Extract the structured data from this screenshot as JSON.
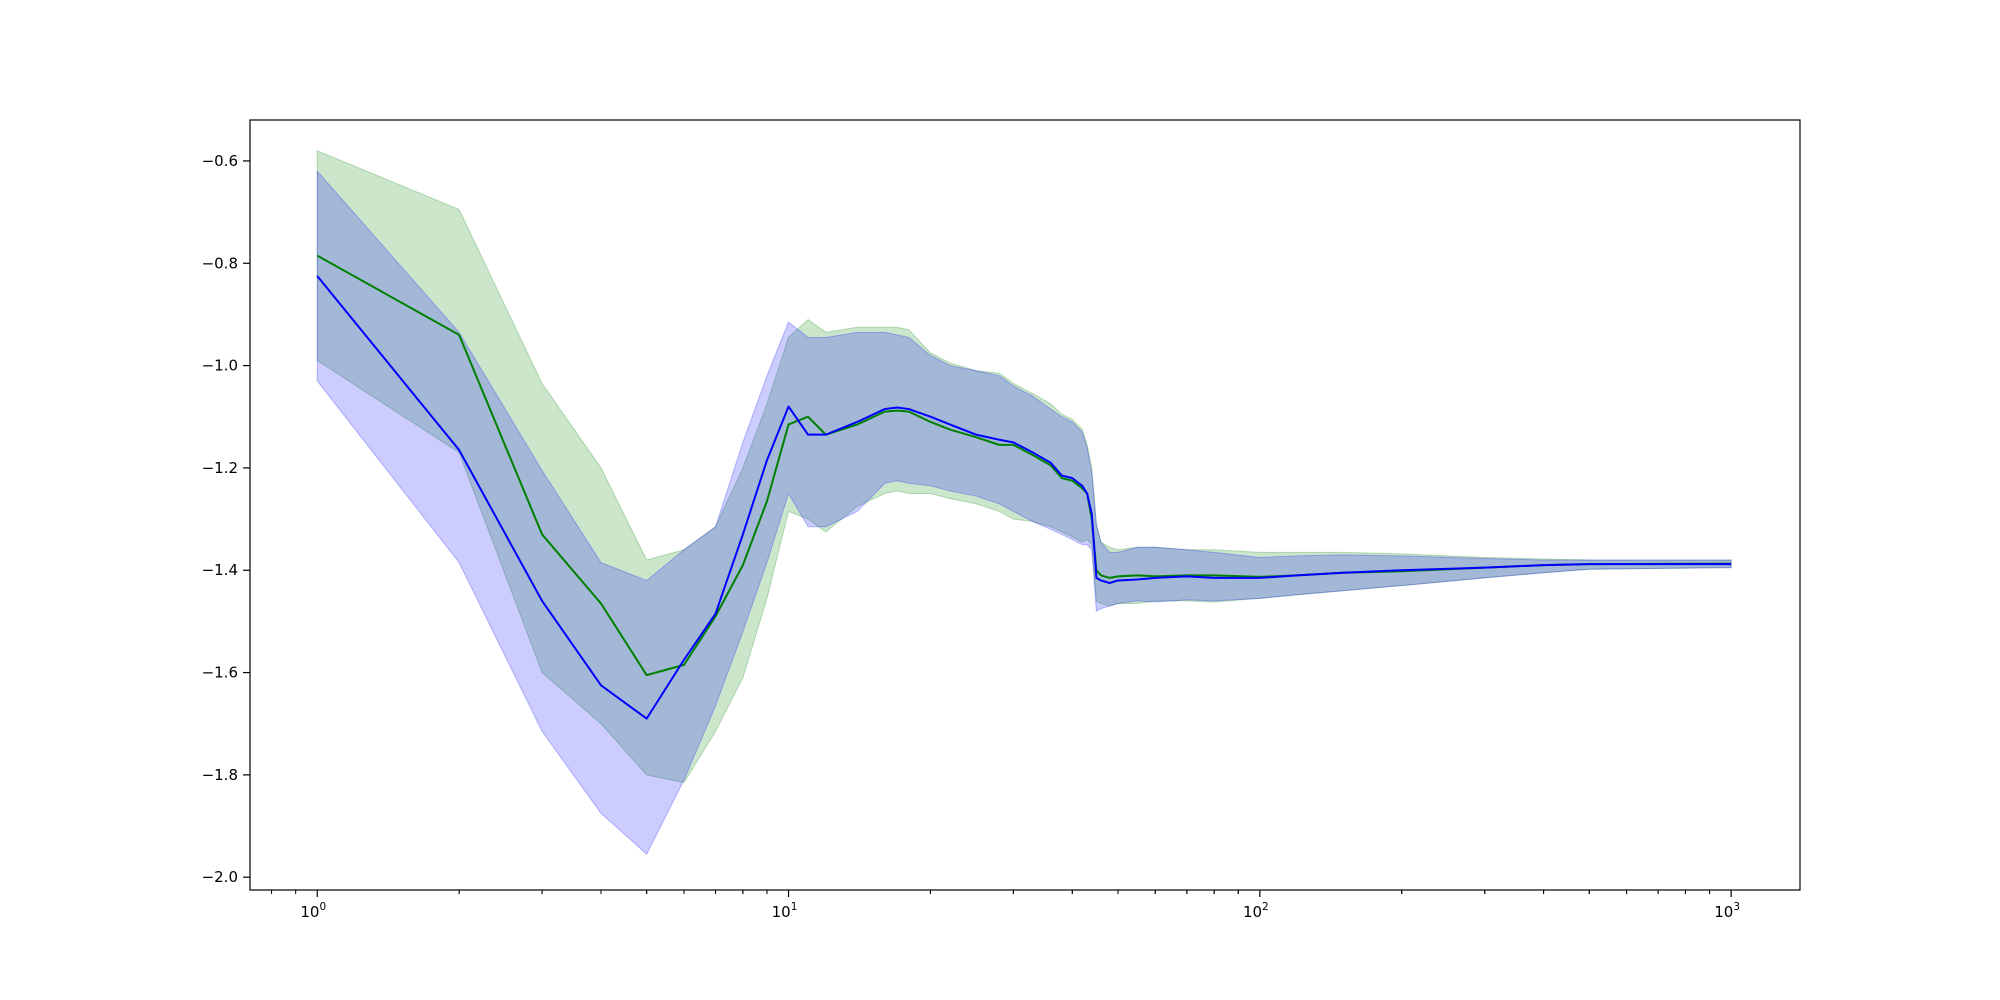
{
  "chart_data": {
    "type": "line",
    "title": "",
    "xlabel": "",
    "ylabel": "",
    "xscale": "log",
    "xlim": [
      0.72,
      1400
    ],
    "ylim": [
      -2.025,
      -0.52
    ],
    "grid": false,
    "legend": "none",
    "x_ticks": [
      {
        "value": 1,
        "base": "10",
        "exp": "0"
      },
      {
        "value": 10,
        "base": "10",
        "exp": "1"
      },
      {
        "value": 100,
        "base": "10",
        "exp": "2"
      },
      {
        "value": 1000,
        "base": "10",
        "exp": "3"
      }
    ],
    "y_ticks": [
      {
        "value": -0.6,
        "label": "−0.6"
      },
      {
        "value": -0.8,
        "label": "−0.8"
      },
      {
        "value": -1.0,
        "label": "−1.0"
      },
      {
        "value": -1.2,
        "label": "−1.2"
      },
      {
        "value": -1.4,
        "label": "−1.4"
      },
      {
        "value": -1.6,
        "label": "−1.6"
      },
      {
        "value": -1.8,
        "label": "−1.8"
      },
      {
        "value": -2.0,
        "label": "−2.0"
      }
    ],
    "series": [
      {
        "color": "#008000",
        "band_color": "#008000",
        "band_opacity": 0.2,
        "x": [
          1,
          2,
          3,
          4,
          5,
          6,
          7,
          8,
          9,
          10,
          11,
          12,
          14,
          16,
          17,
          18,
          20,
          22,
          25,
          28,
          30,
          33,
          36,
          38,
          40,
          42,
          43,
          44,
          45,
          46,
          48,
          50,
          55,
          60,
          70,
          80,
          100,
          120,
          150,
          200,
          300,
          400,
          500,
          1000
        ],
        "y": [
          -0.785,
          -0.94,
          -1.33,
          -1.465,
          -1.605,
          -1.585,
          -1.49,
          -1.39,
          -1.265,
          -1.115,
          -1.1,
          -1.135,
          -1.115,
          -1.09,
          -1.088,
          -1.09,
          -1.11,
          -1.125,
          -1.14,
          -1.155,
          -1.155,
          -1.175,
          -1.195,
          -1.22,
          -1.225,
          -1.24,
          -1.25,
          -1.3,
          -1.4,
          -1.41,
          -1.415,
          -1.412,
          -1.41,
          -1.412,
          -1.41,
          -1.41,
          -1.413,
          -1.41,
          -1.405,
          -1.402,
          -1.395,
          -1.39,
          -1.388,
          -1.387
        ],
        "upper": [
          -0.58,
          -0.695,
          -1.035,
          -1.2,
          -1.38,
          -1.36,
          -1.315,
          -1.2,
          -1.075,
          -0.945,
          -0.91,
          -0.935,
          -0.925,
          -0.925,
          -0.925,
          -0.93,
          -0.975,
          -0.995,
          -1.01,
          -1.015,
          -1.035,
          -1.055,
          -1.075,
          -1.095,
          -1.105,
          -1.125,
          -1.155,
          -1.2,
          -1.31,
          -1.345,
          -1.355,
          -1.36,
          -1.355,
          -1.355,
          -1.36,
          -1.36,
          -1.365,
          -1.365,
          -1.365,
          -1.368,
          -1.375,
          -1.378,
          -1.38,
          -1.38
        ],
        "lower": [
          -0.99,
          -1.17,
          -1.6,
          -1.7,
          -1.8,
          -1.815,
          -1.715,
          -1.61,
          -1.455,
          -1.285,
          -1.3,
          -1.325,
          -1.275,
          -1.25,
          -1.245,
          -1.25,
          -1.25,
          -1.26,
          -1.27,
          -1.285,
          -1.3,
          -1.305,
          -1.315,
          -1.325,
          -1.335,
          -1.345,
          -1.34,
          -1.35,
          -1.46,
          -1.465,
          -1.47,
          -1.465,
          -1.465,
          -1.46,
          -1.46,
          -1.462,
          -1.455,
          -1.448,
          -1.44,
          -1.43,
          -1.415,
          -1.405,
          -1.398,
          -1.395
        ]
      },
      {
        "color": "#0000ff",
        "band_color": "#0000ff",
        "band_opacity": 0.2,
        "x": [
          1,
          2,
          3,
          4,
          5,
          6,
          7,
          8,
          9,
          10,
          11,
          12,
          14,
          16,
          17,
          18,
          20,
          22,
          25,
          28,
          30,
          33,
          36,
          38,
          40,
          42,
          43,
          44,
          45,
          46,
          48,
          50,
          55,
          60,
          70,
          80,
          100,
          120,
          150,
          200,
          300,
          400,
          500,
          1000
        ],
        "y": [
          -0.825,
          -1.165,
          -1.46,
          -1.625,
          -1.69,
          -1.575,
          -1.485,
          -1.33,
          -1.185,
          -1.08,
          -1.135,
          -1.135,
          -1.11,
          -1.085,
          -1.082,
          -1.085,
          -1.1,
          -1.115,
          -1.135,
          -1.145,
          -1.15,
          -1.17,
          -1.19,
          -1.215,
          -1.22,
          -1.235,
          -1.25,
          -1.29,
          -1.415,
          -1.42,
          -1.425,
          -1.42,
          -1.418,
          -1.415,
          -1.412,
          -1.415,
          -1.415,
          -1.41,
          -1.405,
          -1.4,
          -1.395,
          -1.39,
          -1.388,
          -1.388
        ],
        "upper": [
          -0.62,
          -0.935,
          -1.205,
          -1.385,
          -1.42,
          -1.36,
          -1.315,
          -1.15,
          -1.02,
          -0.915,
          -0.945,
          -0.945,
          -0.935,
          -0.935,
          -0.94,
          -0.945,
          -0.98,
          -1.0,
          -1.01,
          -1.02,
          -1.04,
          -1.06,
          -1.085,
          -1.1,
          -1.11,
          -1.13,
          -1.16,
          -1.21,
          -1.31,
          -1.345,
          -1.365,
          -1.365,
          -1.355,
          -1.355,
          -1.36,
          -1.365,
          -1.375,
          -1.372,
          -1.37,
          -1.372,
          -1.377,
          -1.38,
          -1.38,
          -1.38
        ],
        "lower": [
          -1.03,
          -1.385,
          -1.715,
          -1.875,
          -1.955,
          -1.81,
          -1.665,
          -1.52,
          -1.385,
          -1.25,
          -1.315,
          -1.315,
          -1.285,
          -1.23,
          -1.225,
          -1.23,
          -1.235,
          -1.245,
          -1.255,
          -1.27,
          -1.285,
          -1.305,
          -1.32,
          -1.33,
          -1.34,
          -1.35,
          -1.35,
          -1.36,
          -1.48,
          -1.475,
          -1.47,
          -1.465,
          -1.46,
          -1.462,
          -1.458,
          -1.46,
          -1.455,
          -1.448,
          -1.44,
          -1.43,
          -1.415,
          -1.405,
          -1.398,
          -1.395
        ]
      }
    ]
  }
}
